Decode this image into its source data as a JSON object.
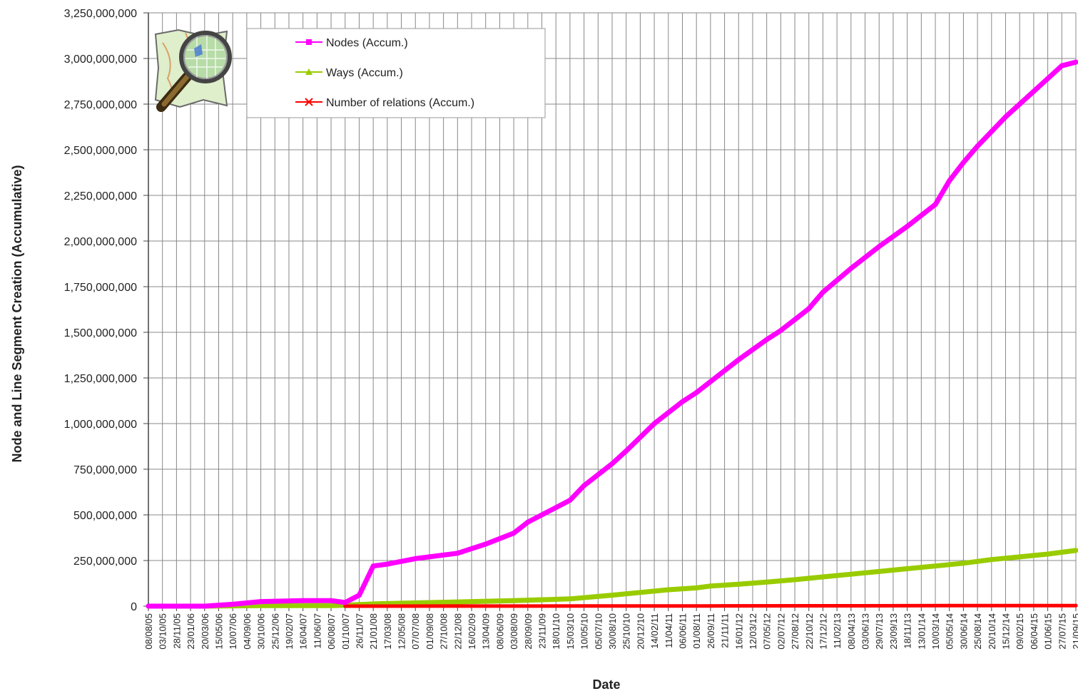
{
  "chart_data": {
    "type": "line",
    "xlabel": "Date",
    "ylabel": "Node and Line Segment Creation (Accumulative)",
    "ylim": [
      0,
      3250000000
    ],
    "y_ticks": [
      0,
      250000000,
      500000000,
      750000000,
      1000000000,
      1250000000,
      1500000000,
      1750000000,
      2000000000,
      2250000000,
      2500000000,
      2750000000,
      3000000000,
      3250000000
    ],
    "y_tick_labels": [
      "0",
      "250,000,000",
      "500,000,000",
      "750,000,000",
      "1,000,000,000",
      "1,250,000,000",
      "1,500,000,000",
      "1,750,000,000",
      "2,000,000,000",
      "2,250,000,000",
      "2,500,000,000",
      "2,750,000,000",
      "3,000,000,000",
      "3,250,000,000"
    ],
    "x_tick_labels": [
      "08/08/05",
      "03/10/05",
      "28/11/05",
      "23/01/06",
      "20/03/06",
      "15/05/06",
      "10/07/06",
      "04/09/06",
      "30/10/06",
      "25/12/06",
      "19/02/07",
      "16/04/07",
      "11/06/07",
      "06/08/07",
      "01/10/07",
      "26/11/07",
      "21/01/08",
      "17/03/08",
      "12/05/08",
      "07/07/08",
      "01/09/08",
      "27/10/08",
      "22/12/08",
      "16/02/09",
      "13/04/09",
      "08/06/09",
      "03/08/09",
      "28/09/09",
      "23/11/09",
      "18/01/10",
      "15/03/10",
      "10/05/10",
      "05/07/10",
      "30/08/10",
      "25/10/10",
      "20/12/10",
      "14/02/11",
      "11/04/11",
      "06/06/11",
      "01/08/11",
      "26/09/11",
      "21/11/11",
      "16/01/12",
      "12/03/12",
      "07/05/12",
      "02/07/12",
      "27/08/12",
      "22/10/12",
      "17/12/12",
      "11/02/13",
      "08/04/13",
      "03/06/13",
      "29/07/13",
      "23/09/13",
      "18/11/13",
      "13/01/14",
      "10/03/14",
      "05/05/14",
      "30/06/14",
      "25/08/14",
      "20/10/14",
      "15/12/14",
      "09/02/15",
      "06/04/15",
      "01/06/15",
      "27/07/15",
      "21/09/15"
    ],
    "grid": true,
    "legend_position": "top-left",
    "series": [
      {
        "name": "Nodes (Accum.)",
        "color": "#ff00ff",
        "marker": "square",
        "x": [
          "08/08/05",
          "23/01/06",
          "20/03/06",
          "10/07/06",
          "30/10/06",
          "16/04/07",
          "06/08/07",
          "01/10/07",
          "26/11/07",
          "21/01/08",
          "17/03/08",
          "07/07/08",
          "22/12/08",
          "13/04/09",
          "03/08/09",
          "28/09/09",
          "18/01/10",
          "15/03/10",
          "10/05/10",
          "30/08/10",
          "25/10/10",
          "14/02/11",
          "06/06/11",
          "01/08/11",
          "26/09/11",
          "16/01/12",
          "07/05/12",
          "02/07/12",
          "27/08/12",
          "22/10/12",
          "17/12/12",
          "08/04/13",
          "29/07/13",
          "18/11/13",
          "10/03/14",
          "05/05/14",
          "30/06/14",
          "25/08/14",
          "20/10/14",
          "15/12/14",
          "09/02/15",
          "06/04/15",
          "01/06/15",
          "27/07/15",
          "21/09/15"
        ],
        "values": [
          0,
          0,
          0,
          10000000,
          25000000,
          30000000,
          30000000,
          20000000,
          60000000,
          220000000,
          230000000,
          260000000,
          290000000,
          340000000,
          400000000,
          460000000,
          540000000,
          580000000,
          660000000,
          780000000,
          850000000,
          1000000000,
          1120000000,
          1170000000,
          1230000000,
          1350000000,
          1460000000,
          1510000000,
          1570000000,
          1630000000,
          1720000000,
          1850000000,
          1970000000,
          2080000000,
          2200000000,
          2330000000,
          2430000000,
          2520000000,
          2600000000,
          2680000000,
          2750000000,
          2820000000,
          2890000000,
          2960000000,
          2980000000
        ]
      },
      {
        "name": "Ways (Accum.)",
        "color": "#99cc00",
        "marker": "triangle",
        "x": [
          "20/03/06",
          "30/10/06",
          "06/08/07",
          "01/10/07",
          "21/01/08",
          "12/05/08",
          "22/12/08",
          "03/08/09",
          "15/03/10",
          "30/08/10",
          "20/12/10",
          "11/04/11",
          "01/08/11",
          "26/09/11",
          "16/01/12",
          "07/05/12",
          "27/08/12",
          "17/12/12",
          "08/04/13",
          "29/07/13",
          "18/11/13",
          "10/03/14",
          "30/06/14",
          "20/10/14",
          "09/02/15",
          "01/06/15",
          "21/09/15"
        ],
        "values": [
          0,
          3000000,
          3000000,
          5000000,
          12000000,
          16000000,
          23000000,
          30000000,
          40000000,
          60000000,
          75000000,
          90000000,
          100000000,
          110000000,
          120000000,
          132000000,
          145000000,
          160000000,
          175000000,
          190000000,
          205000000,
          220000000,
          235000000,
          255000000,
          270000000,
          285000000,
          305000000
        ]
      },
      {
        "name": "Number of relations (Accum.)",
        "color": "#ff0000",
        "marker": "x",
        "x": [
          "01/10/07",
          "22/12/08",
          "10/05/10",
          "26/09/11",
          "22/10/12",
          "03/06/13",
          "05/05/14",
          "09/02/15",
          "21/09/15"
        ],
        "values": [
          0,
          200000,
          600000,
          1200000,
          1800000,
          2100000,
          2600000,
          3000000,
          3300000
        ]
      }
    ]
  }
}
